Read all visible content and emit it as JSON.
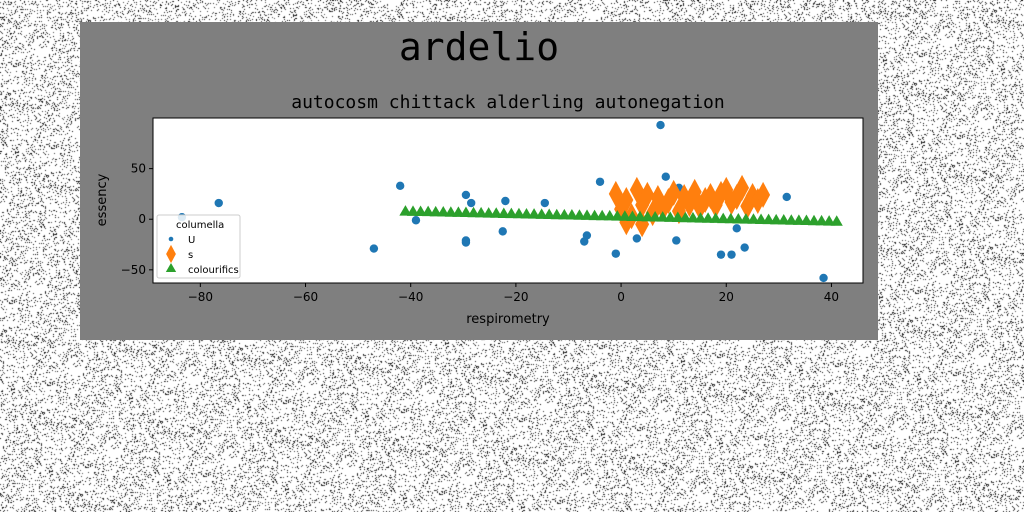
{
  "figure": {
    "suptitle": "ardelio"
  },
  "colors": {
    "figure_bg": "#7f7f7f",
    "axes_bg": "#ffffff",
    "series_U": "#1f77b4",
    "series_s": "#ff7f0e",
    "series_colourifics": "#2ca02c"
  },
  "chart_data": {
    "type": "scatter",
    "title": "autocosm chittack alderling autonegation",
    "xlabel": "respirometry",
    "ylabel": "essency",
    "xlim": [
      -89,
      46
    ],
    "ylim": [
      -63,
      100
    ],
    "xticks": [
      -80,
      -60,
      -40,
      -20,
      0,
      20,
      40
    ],
    "yticks": [
      -50,
      0,
      50
    ],
    "grid": false,
    "legend": {
      "title": "columella",
      "location": "lower-left",
      "entries": [
        "U",
        "s",
        "colourifics"
      ]
    },
    "series": [
      {
        "name": "U",
        "marker": "circle",
        "points": [
          [
            -83.5,
            2
          ],
          [
            -76.5,
            16
          ],
          [
            -47,
            -29
          ],
          [
            -42,
            33
          ],
          [
            -39,
            -1
          ],
          [
            -29.5,
            -21
          ],
          [
            -29.5,
            -23
          ],
          [
            -29.5,
            24
          ],
          [
            -28.5,
            16
          ],
          [
            -22.5,
            -12
          ],
          [
            -22,
            18
          ],
          [
            -14.5,
            16
          ],
          [
            -7,
            -22
          ],
          [
            -6.5,
            -16
          ],
          [
            -4,
            37
          ],
          [
            -1,
            -34
          ],
          [
            3,
            -19
          ],
          [
            7.5,
            93
          ],
          [
            8.5,
            42
          ],
          [
            10.5,
            -21
          ],
          [
            11,
            31
          ],
          [
            19,
            -35
          ],
          [
            21,
            -35
          ],
          [
            22,
            -9
          ],
          [
            23.5,
            -28
          ],
          [
            31.5,
            22
          ],
          [
            38.5,
            -58
          ]
        ]
      },
      {
        "name": "s",
        "marker": "thin_diamond",
        "points": [
          [
            -1,
            25
          ],
          [
            0,
            10
          ],
          [
            1,
            19
          ],
          [
            2,
            3
          ],
          [
            3,
            29
          ],
          [
            4,
            14
          ],
          [
            5,
            24
          ],
          [
            6,
            6
          ],
          [
            7,
            21
          ],
          [
            8,
            11
          ],
          [
            9,
            18
          ],
          [
            10,
            26
          ],
          [
            11,
            8
          ],
          [
            12,
            22
          ],
          [
            13,
            15
          ],
          [
            14,
            27
          ],
          [
            15,
            12
          ],
          [
            16,
            19
          ],
          [
            17,
            23
          ],
          [
            18,
            14
          ],
          [
            19,
            25
          ],
          [
            20,
            29
          ],
          [
            21,
            17
          ],
          [
            22,
            22
          ],
          [
            23,
            31
          ],
          [
            24,
            13
          ],
          [
            25,
            23
          ],
          [
            26,
            18
          ],
          [
            27,
            24
          ],
          [
            1,
            -3
          ],
          [
            4,
            -5
          ]
        ]
      },
      {
        "name": "colourifics",
        "marker": "triangle",
        "trend": {
          "x_from": -41,
          "x_to": 41,
          "y_from": 7,
          "y_to": -3,
          "count": 58
        }
      }
    ]
  }
}
